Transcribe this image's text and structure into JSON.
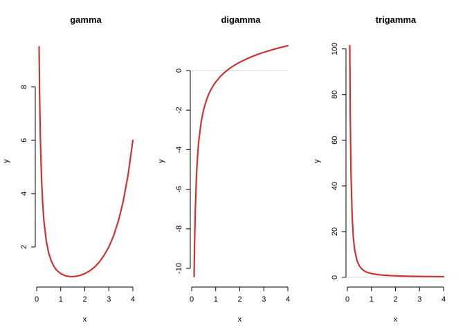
{
  "chart_data": [
    {
      "type": "line",
      "title": "gamma",
      "xlabel": "x",
      "ylabel": "y",
      "xlim": [
        0,
        4
      ],
      "ylim": [
        0.885,
        9.55
      ],
      "xticks": [
        0,
        1,
        2,
        3,
        4
      ],
      "yticks": [
        2,
        4,
        6,
        8
      ],
      "reference_line": null,
      "color": "#CD3333",
      "x": [
        0.1,
        0.12,
        0.15,
        0.2,
        0.25,
        0.3,
        0.4,
        0.5,
        0.6,
        0.7,
        0.8,
        0.9,
        1.0,
        1.2,
        1.4,
        1.4616,
        1.6,
        1.8,
        2.0,
        2.2,
        2.4,
        2.6,
        2.8,
        3.0,
        3.2,
        3.4,
        3.6,
        3.8,
        4.0
      ],
      "y": [
        9.51,
        7.8,
        6.22,
        4.59,
        3.63,
        2.99,
        2.22,
        1.77,
        1.49,
        1.3,
        1.16,
        1.07,
        1.0,
        0.918,
        0.887,
        0.886,
        0.894,
        0.931,
        1.0,
        1.1,
        1.24,
        1.43,
        1.68,
        2.0,
        2.42,
        2.98,
        3.72,
        4.69,
        6.0
      ]
    },
    {
      "type": "line",
      "title": "digamma",
      "xlabel": "x",
      "ylabel": "y",
      "xlim": [
        0,
        4
      ],
      "ylim": [
        -10.42,
        1.26
      ],
      "xticks": [
        0,
        1,
        2,
        3,
        4
      ],
      "yticks": [
        -10,
        -8,
        -6,
        -4,
        -2,
        0
      ],
      "reference_line": 0,
      "color": "#CD3333",
      "x": [
        0.1,
        0.12,
        0.15,
        0.2,
        0.25,
        0.3,
        0.4,
        0.5,
        0.6,
        0.7,
        0.8,
        0.9,
        1.0,
        1.2,
        1.4,
        1.6,
        1.8,
        2.0,
        2.25,
        2.5,
        2.75,
        3.0,
        3.25,
        3.5,
        3.75,
        4.0
      ],
      "y": [
        -10.42,
        -8.78,
        -7.1,
        -5.29,
        -4.23,
        -3.5,
        -2.56,
        -1.96,
        -1.54,
        -1.22,
        -0.965,
        -0.755,
        -0.577,
        -0.289,
        -0.0614,
        0.126,
        0.2855,
        0.4228,
        0.568,
        0.7032,
        0.8215,
        0.9228,
        1.0172,
        1.1032,
        1.1824,
        1.2561
      ]
    },
    {
      "type": "line",
      "title": "trigamma",
      "xlabel": "x",
      "ylabel": "y",
      "xlim": [
        0,
        4
      ],
      "ylim": [
        0.28,
        101.43
      ],
      "xticks": [
        0,
        1,
        2,
        3,
        4
      ],
      "yticks": [
        0,
        20,
        40,
        60,
        80,
        100
      ],
      "reference_line": 0,
      "color": "#CD3333",
      "x": [
        0.1,
        0.12,
        0.15,
        0.2,
        0.25,
        0.3,
        0.4,
        0.5,
        0.6,
        0.7,
        0.8,
        0.9,
        1.0,
        1.25,
        1.5,
        1.75,
        2.0,
        2.5,
        3.0,
        3.5,
        4.0
      ],
      "y": [
        101.43,
        71.2,
        45.9,
        26.27,
        17.2,
        12.25,
        7.28,
        4.93,
        3.64,
        2.83,
        2.29,
        1.91,
        1.645,
        1.197,
        0.935,
        0.767,
        0.645,
        0.49,
        0.395,
        0.33,
        0.284
      ]
    }
  ]
}
